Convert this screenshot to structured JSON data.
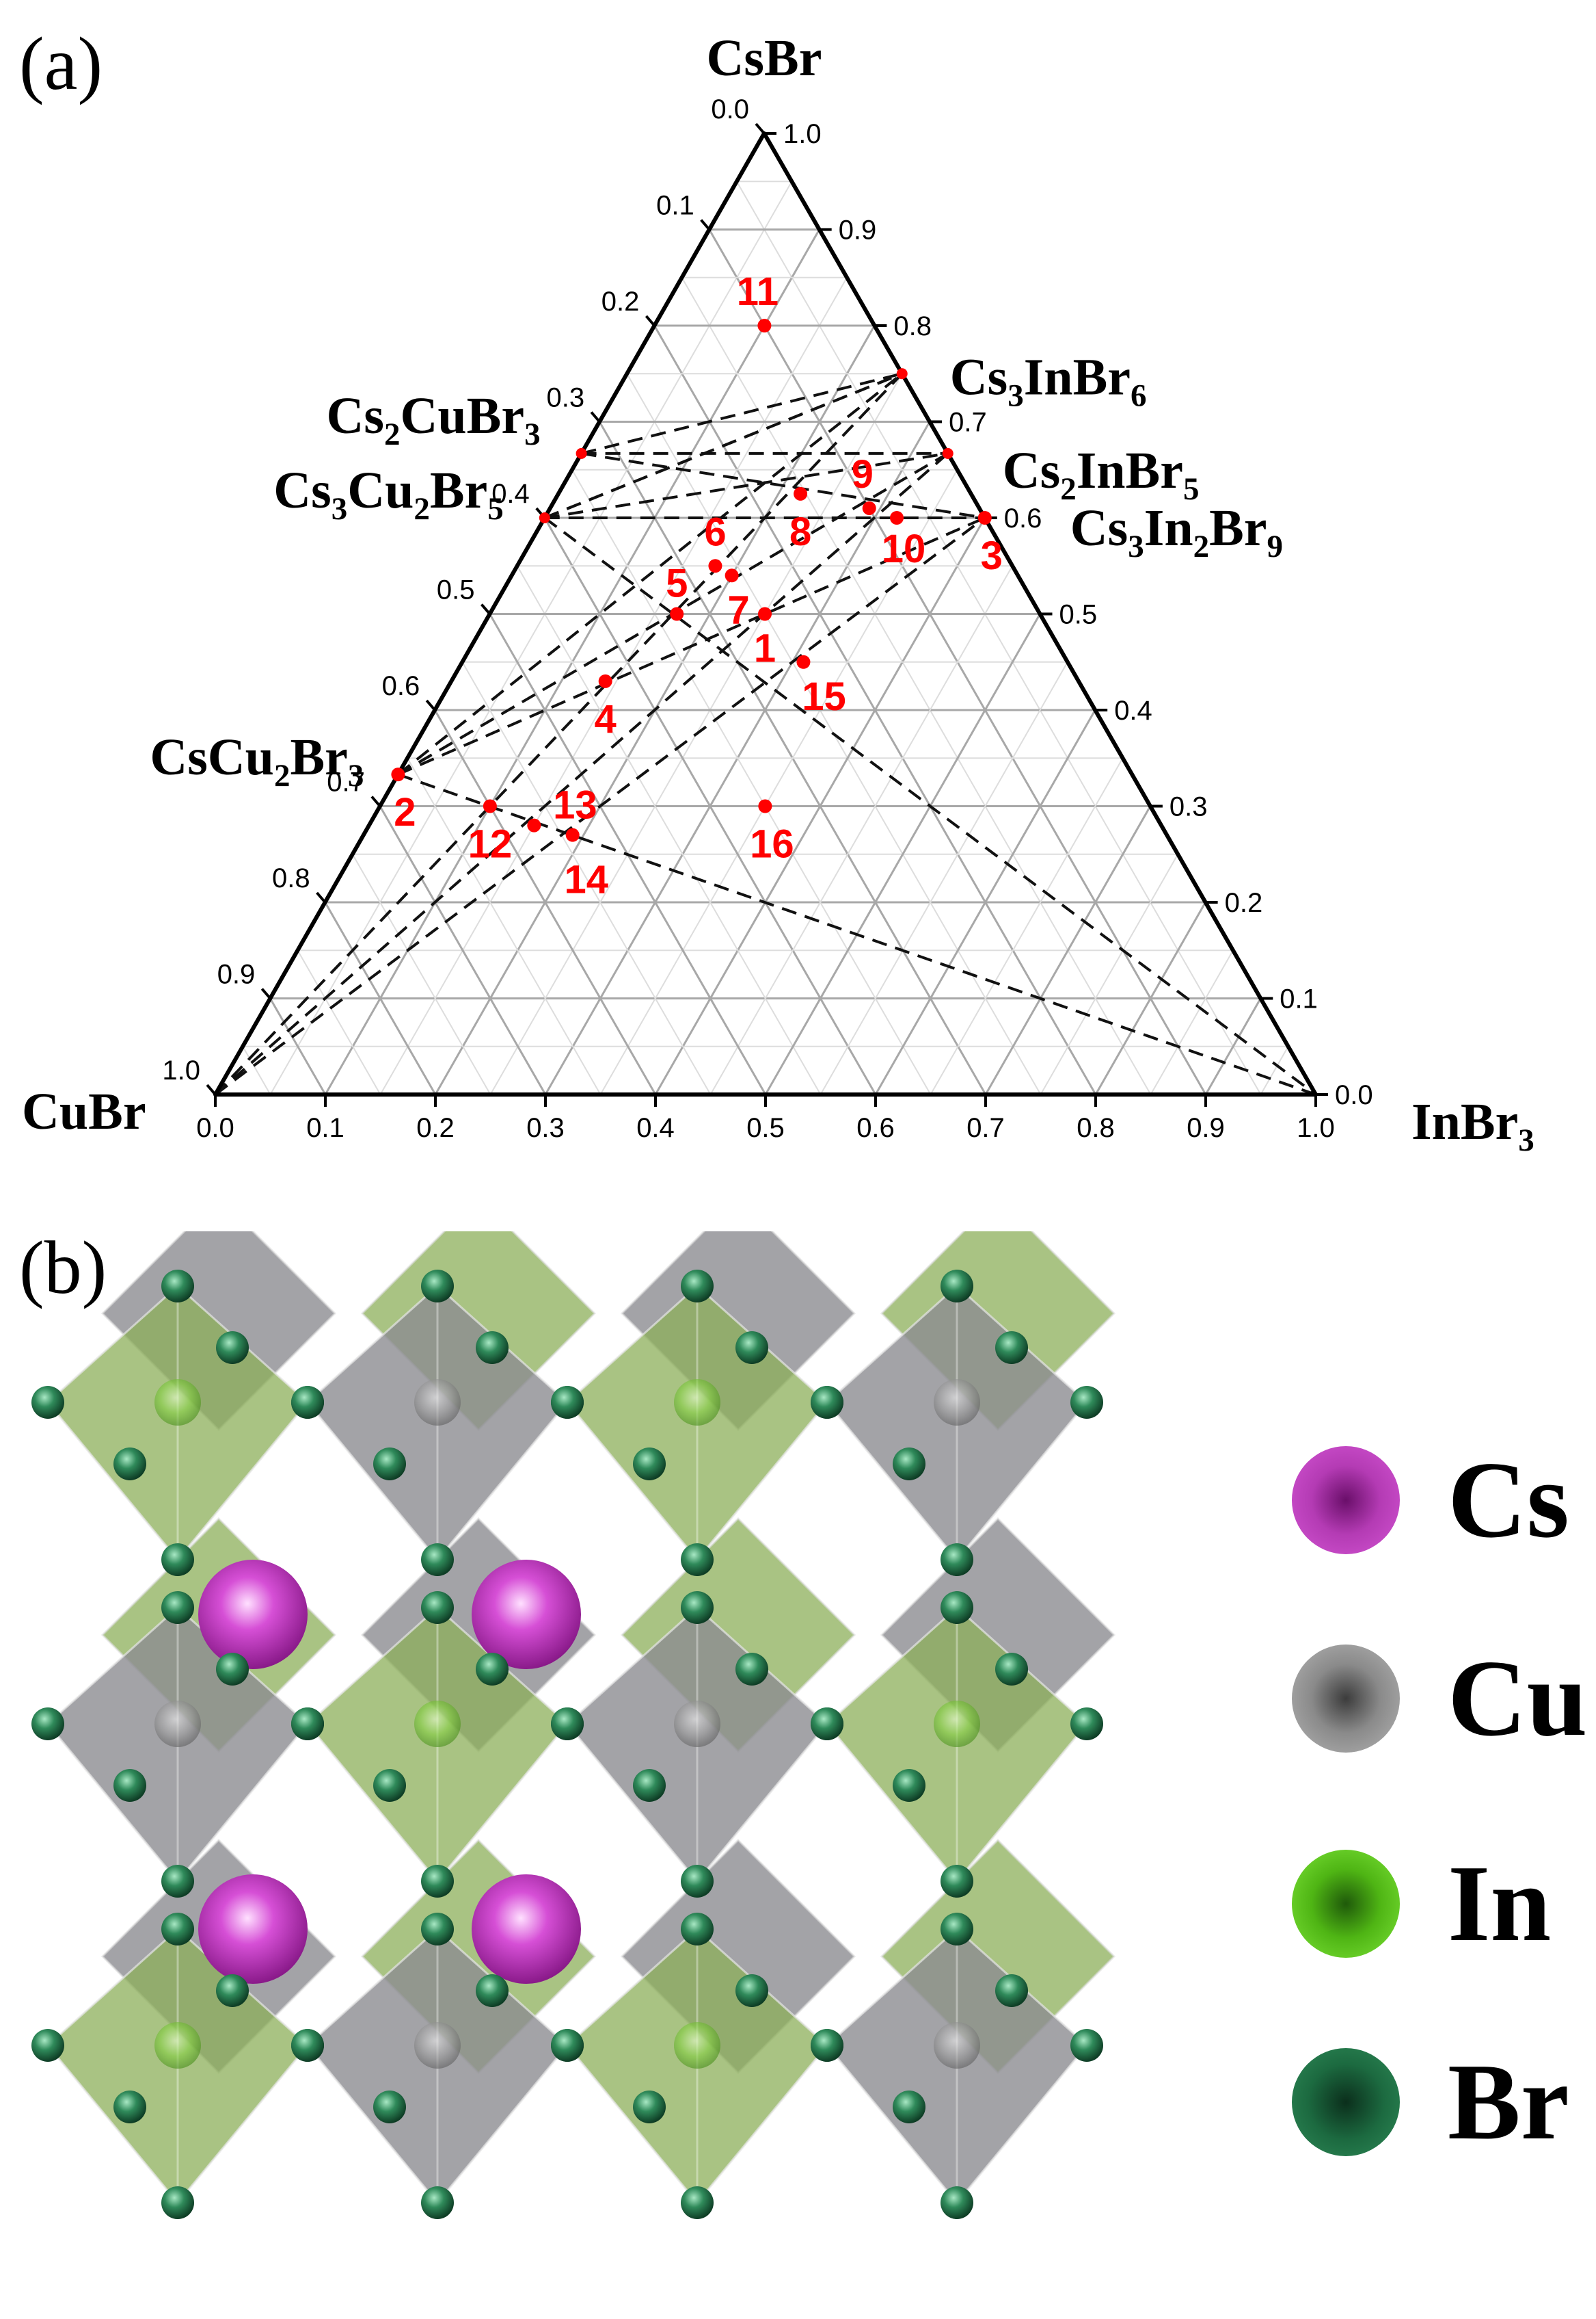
{
  "panels": {
    "a_label": "(a)",
    "b_label": "(b)"
  },
  "chart_data": {
    "type": "ternary",
    "vertices": {
      "top": "CsBr",
      "left": "CuBr",
      "right": "InBr3"
    },
    "ticks": [
      0.0,
      0.1,
      0.2,
      0.3,
      0.4,
      0.5,
      0.6,
      0.7,
      0.8,
      0.9,
      1.0
    ],
    "tick_labels": [
      "0.0",
      "0.1",
      "0.2",
      "0.3",
      "0.4",
      "0.5",
      "0.6",
      "0.7",
      "0.8",
      "0.9",
      "1.0"
    ],
    "grid": true,
    "phases": [
      {
        "name": "Cs3InBr6",
        "csbr": 0.75,
        "inbr3": 0.25
      },
      {
        "name": "Cs2InBr5",
        "csbr": 0.667,
        "inbr3": 0.333
      },
      {
        "name": "Cs3In2Br9",
        "csbr": 0.6,
        "inbr3": 0.4
      },
      {
        "name": "Cs2CuBr3",
        "csbr": 0.667,
        "inbr3": 0.0
      },
      {
        "name": "Cs3Cu2Br5",
        "csbr": 0.6,
        "inbr3": 0.0
      },
      {
        "name": "CsCu2Br3",
        "csbr": 0.333,
        "inbr3": 0.0
      }
    ],
    "points": [
      {
        "label": "1",
        "csbr": 0.5,
        "inbr3": 0.25
      },
      {
        "label": "2",
        "csbr": 0.333,
        "inbr3": 0.0
      },
      {
        "label": "3",
        "csbr": 0.6,
        "inbr3": 0.4
      },
      {
        "label": "4",
        "csbr": 0.43,
        "inbr3": 0.14
      },
      {
        "label": "5",
        "csbr": 0.5,
        "inbr3": 0.17
      },
      {
        "label": "6",
        "csbr": 0.55,
        "inbr3": 0.18
      },
      {
        "label": "7",
        "csbr": 0.54,
        "inbr3": 0.2
      },
      {
        "label": "8",
        "csbr": 0.625,
        "inbr3": 0.22
      },
      {
        "label": "9",
        "csbr": 0.61,
        "inbr3": 0.29
      },
      {
        "label": "10",
        "csbr": 0.6,
        "inbr3": 0.32
      },
      {
        "label": "11",
        "csbr": 0.8,
        "inbr3": 0.1
      },
      {
        "label": "12",
        "csbr": 0.3,
        "inbr3": 0.1
      },
      {
        "label": "13",
        "csbr": 0.28,
        "inbr3": 0.15
      },
      {
        "label": "14",
        "csbr": 0.27,
        "inbr3": 0.19
      },
      {
        "label": "15",
        "csbr": 0.45,
        "inbr3": 0.31
      },
      {
        "label": "16",
        "csbr": 0.3,
        "inbr3": 0.35
      }
    ],
    "tie_lines": [
      [
        "Cs2CuBr3",
        "Cs3InBr6"
      ],
      [
        "Cs2CuBr3",
        "Cs2InBr5"
      ],
      [
        "Cs2CuBr3",
        "Cs3In2Br9"
      ],
      [
        "Cs3Cu2Br5",
        "Cs3InBr6"
      ],
      [
        "Cs3Cu2Br5",
        "Cs2InBr5"
      ],
      [
        "Cs3Cu2Br5",
        "Cs3In2Br9"
      ],
      [
        "Cs3Cu2Br5",
        "Cs3InBr6b"
      ],
      [
        "CsCu2Br3",
        "Cs3InBr6"
      ],
      [
        "CsCu2Br3",
        "Cs2InBr5"
      ],
      [
        "CsCu2Br3",
        "Cs3In2Br9"
      ],
      [
        "CsCu2Br3",
        "InBr3"
      ],
      [
        "CuBr",
        "Cs3InBr6"
      ],
      [
        "CuBr",
        "Cs2InBr5"
      ],
      [
        "CuBr",
        "Cs3In2Br9"
      ],
      [
        "CuBr",
        "Cs2CuBr3"
      ],
      [
        "CuBr",
        "Cs3Cu2Br5"
      ],
      [
        "Cs3InBr6",
        "InBr3"
      ],
      [
        "Cs3In2Br9",
        "InBr3"
      ],
      [
        "Cs3Cu2Br5",
        "InBr3"
      ]
    ],
    "point_color": "#ff0000"
  },
  "legend": [
    {
      "label": "Cs",
      "color": "#cc33cc"
    },
    {
      "label": "Cu",
      "color": "#8a8a8a"
    },
    {
      "label": "In",
      "color": "#5fcf1a"
    },
    {
      "label": "Br",
      "color": "#1f6b45"
    }
  ]
}
